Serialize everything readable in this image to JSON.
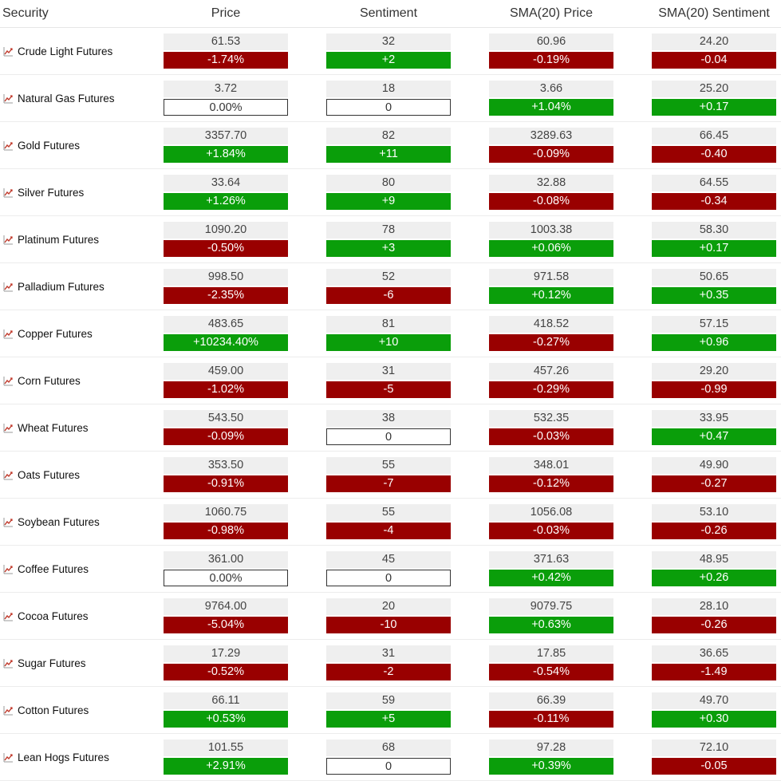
{
  "headers": {
    "security": "Security",
    "price": "Price",
    "sentiment": "Sentiment",
    "sma_price": "SMA(20) Price",
    "sma_sentiment": "SMA(20) Sentiment"
  },
  "colors": {
    "positive": "#0a9e0a",
    "negative": "#990000",
    "neutral_bg": "#efefef",
    "icon": "#c0392b"
  },
  "row_icon": "trend-chart-icon",
  "rows": [
    {
      "name": "Crude Light Futures",
      "price": "61.53",
      "price_chg": "-1.74%",
      "sent": "32",
      "sent_chg": "+2",
      "sma_price": "60.96",
      "sma_price_chg": "-0.19%",
      "sma_sent": "24.20",
      "sma_sent_chg": "-0.04"
    },
    {
      "name": "Natural Gas Futures",
      "price": "3.72",
      "price_chg": "0.00%",
      "sent": "18",
      "sent_chg": "0",
      "sma_price": "3.66",
      "sma_price_chg": "+1.04%",
      "sma_sent": "25.20",
      "sma_sent_chg": "+0.17"
    },
    {
      "name": "Gold Futures",
      "price": "3357.70",
      "price_chg": "+1.84%",
      "sent": "82",
      "sent_chg": "+11",
      "sma_price": "3289.63",
      "sma_price_chg": "-0.09%",
      "sma_sent": "66.45",
      "sma_sent_chg": "-0.40"
    },
    {
      "name": "Silver Futures",
      "price": "33.64",
      "price_chg": "+1.26%",
      "sent": "80",
      "sent_chg": "+9",
      "sma_price": "32.88",
      "sma_price_chg": "-0.08%",
      "sma_sent": "64.55",
      "sma_sent_chg": "-0.34"
    },
    {
      "name": "Platinum Futures",
      "price": "1090.20",
      "price_chg": "-0.50%",
      "sent": "78",
      "sent_chg": "+3",
      "sma_price": "1003.38",
      "sma_price_chg": "+0.06%",
      "sma_sent": "58.30",
      "sma_sent_chg": "+0.17"
    },
    {
      "name": "Palladium Futures",
      "price": "998.50",
      "price_chg": "-2.35%",
      "sent": "52",
      "sent_chg": "-6",
      "sma_price": "971.58",
      "sma_price_chg": "+0.12%",
      "sma_sent": "50.65",
      "sma_sent_chg": "+0.35"
    },
    {
      "name": "Copper Futures",
      "price": "483.65",
      "price_chg": "+10234.40%",
      "sent": "81",
      "sent_chg": "+10",
      "sma_price": "418.52",
      "sma_price_chg": "-0.27%",
      "sma_sent": "57.15",
      "sma_sent_chg": "+0.96"
    },
    {
      "name": "Corn Futures",
      "price": "459.00",
      "price_chg": "-1.02%",
      "sent": "31",
      "sent_chg": "-5",
      "sma_price": "457.26",
      "sma_price_chg": "-0.29%",
      "sma_sent": "29.20",
      "sma_sent_chg": "-0.99"
    },
    {
      "name": "Wheat Futures",
      "price": "543.50",
      "price_chg": "-0.09%",
      "sent": "38",
      "sent_chg": "0",
      "sma_price": "532.35",
      "sma_price_chg": "-0.03%",
      "sma_sent": "33.95",
      "sma_sent_chg": "+0.47"
    },
    {
      "name": "Oats Futures",
      "price": "353.50",
      "price_chg": "-0.91%",
      "sent": "55",
      "sent_chg": "-7",
      "sma_price": "348.01",
      "sma_price_chg": "-0.12%",
      "sma_sent": "49.90",
      "sma_sent_chg": "-0.27"
    },
    {
      "name": "Soybean Futures",
      "price": "1060.75",
      "price_chg": "-0.98%",
      "sent": "55",
      "sent_chg": "-4",
      "sma_price": "1056.08",
      "sma_price_chg": "-0.03%",
      "sma_sent": "53.10",
      "sma_sent_chg": "-0.26"
    },
    {
      "name": "Coffee Futures",
      "price": "361.00",
      "price_chg": "0.00%",
      "sent": "45",
      "sent_chg": "0",
      "sma_price": "371.63",
      "sma_price_chg": "+0.42%",
      "sma_sent": "48.95",
      "sma_sent_chg": "+0.26"
    },
    {
      "name": "Cocoa Futures",
      "price": "9764.00",
      "price_chg": "-5.04%",
      "sent": "20",
      "sent_chg": "-10",
      "sma_price": "9079.75",
      "sma_price_chg": "+0.63%",
      "sma_sent": "28.10",
      "sma_sent_chg": "-0.26"
    },
    {
      "name": "Sugar Futures",
      "price": "17.29",
      "price_chg": "-0.52%",
      "sent": "31",
      "sent_chg": "-2",
      "sma_price": "17.85",
      "sma_price_chg": "-0.54%",
      "sma_sent": "36.65",
      "sma_sent_chg": "-1.49"
    },
    {
      "name": "Cotton Futures",
      "price": "66.11",
      "price_chg": "+0.53%",
      "sent": "59",
      "sent_chg": "+5",
      "sma_price": "66.39",
      "sma_price_chg": "-0.11%",
      "sma_sent": "49.70",
      "sma_sent_chg": "+0.30"
    },
    {
      "name": "Lean Hogs Futures",
      "price": "101.55",
      "price_chg": "+2.91%",
      "sent": "68",
      "sent_chg": "0",
      "sma_price": "97.28",
      "sma_price_chg": "+0.39%",
      "sma_sent": "72.10",
      "sma_sent_chg": "-0.05"
    }
  ]
}
